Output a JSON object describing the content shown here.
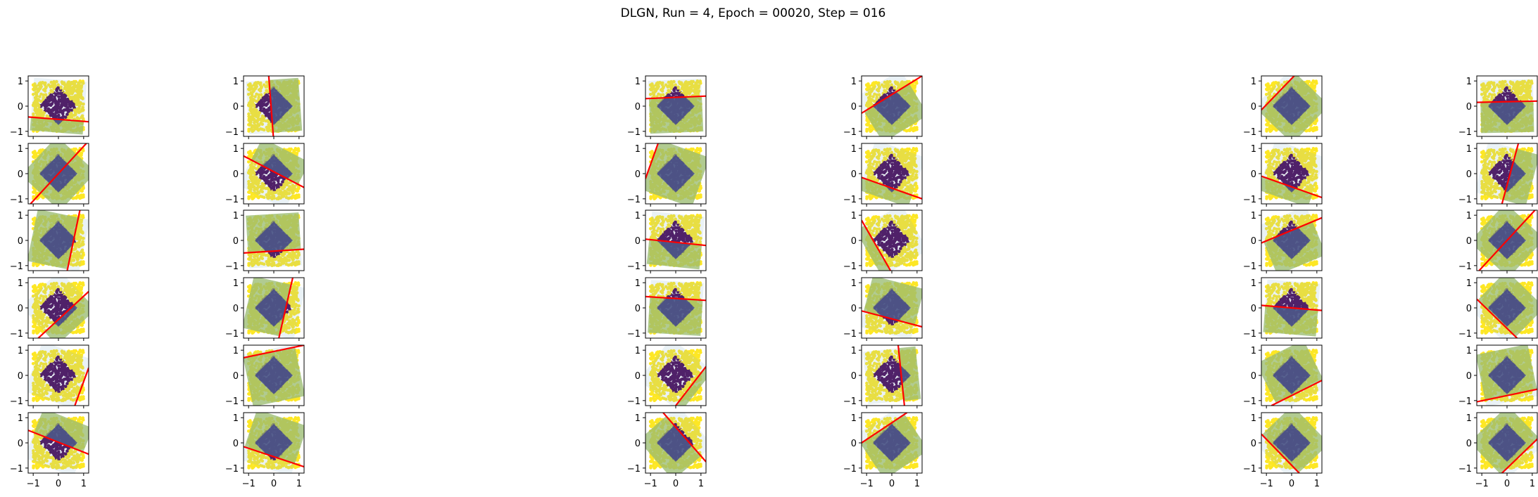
{
  "chart_data": {
    "type": "scatter",
    "title": "DLGN, Run = 4, Epoch = 00020, Step = 016",
    "grid": {
      "rows": 6,
      "cols": 6
    },
    "xlim": [
      -1.2,
      1.2
    ],
    "ylim": [
      -1.2,
      1.2
    ],
    "xticks": [
      -1,
      0,
      1
    ],
    "yticks": [
      -1,
      0,
      1
    ],
    "xtick_labels": [
      "−1",
      "0",
      "1"
    ],
    "ytick_labels": [
      "−1",
      "0",
      "1"
    ],
    "classes": [
      {
        "label": "inside diamond |x|+|y|<0.75",
        "color": "#440154"
      },
      {
        "label": "outside diamond",
        "color": "#fde725"
      }
    ],
    "colors": {
      "line": "#ff0000",
      "region_green": "#9bbb6a",
      "region_blue": "#8db5cc",
      "overlap_dark": "#3a3d8f"
    },
    "boundaries": [
      [
        {
          "p1": [
            -1.2,
            -0.43
          ],
          "p2": [
            1.2,
            -0.62
          ],
          "gate": "below"
        },
        {
          "p1": [
            -0.2,
            1.2
          ],
          "p2": [
            -0.02,
            -1.2
          ],
          "gate": "right"
        },
        {
          "p1": [
            -1.2,
            0.3
          ],
          "p2": [
            1.2,
            0.4
          ],
          "gate": "below"
        },
        {
          "p1": [
            -1.2,
            -0.28
          ],
          "p2": [
            1.2,
            1.2
          ],
          "gate": "below"
        },
        {
          "p1": [
            -1.2,
            -0.15
          ],
          "p2": [
            0.1,
            1.2
          ],
          "gate": "below"
        },
        {
          "p1": [
            -1.2,
            0.15
          ],
          "p2": [
            1.2,
            0.2
          ],
          "gate": "below"
        }
      ],
      [
        {
          "p1": [
            -1.2,
            -1.3
          ],
          "p2": [
            1.2,
            1.3
          ],
          "gate": "all"
        },
        {
          "p1": [
            -1.2,
            0.7
          ],
          "p2": [
            1.2,
            -0.55
          ],
          "gate": "above"
        },
        {
          "p1": [
            -1.2,
            -0.2
          ],
          "p2": [
            -0.7,
            1.2
          ],
          "gate": "below"
        },
        {
          "p1": [
            -1.2,
            -0.15
          ],
          "p2": [
            1.2,
            -1.0
          ],
          "gate": "below"
        },
        {
          "p1": [
            -1.2,
            -0.1
          ],
          "p2": [
            1.2,
            -0.95
          ],
          "gate": "below"
        },
        {
          "p1": [
            -0.2,
            -1.2
          ],
          "p2": [
            0.45,
            1.2
          ],
          "gate": "right"
        }
      ],
      [
        {
          "p1": [
            0.35,
            -1.2
          ],
          "p2": [
            0.85,
            1.2
          ],
          "gate": "left"
        },
        {
          "p1": [
            -1.2,
            -0.5
          ],
          "p2": [
            1.2,
            -0.35
          ],
          "gate": "above"
        },
        {
          "p1": [
            -1.2,
            0.05
          ],
          "p2": [
            1.2,
            -0.2
          ],
          "gate": "below"
        },
        {
          "p1": [
            -1.2,
            0.8
          ],
          "p2": [
            -0.05,
            -1.2
          ],
          "gate": "left"
        },
        {
          "p1": [
            -1.2,
            -0.1
          ],
          "p2": [
            1.2,
            0.9
          ],
          "gate": "below"
        },
        {
          "p1": [
            -1.2,
            -1.3
          ],
          "p2": [
            1.2,
            1.3
          ],
          "gate": "all"
        }
      ],
      [
        {
          "p1": [
            -0.8,
            -1.2
          ],
          "p2": [
            1.2,
            0.65
          ],
          "gate": "below"
        },
        {
          "p1": [
            0.2,
            -1.2
          ],
          "p2": [
            0.75,
            1.2
          ],
          "gate": "left"
        },
        {
          "p1": [
            -1.2,
            0.45
          ],
          "p2": [
            1.2,
            0.3
          ],
          "gate": "below"
        },
        {
          "p1": [
            -1.2,
            -0.12
          ],
          "p2": [
            1.2,
            -0.75
          ],
          "gate": "above"
        },
        {
          "p1": [
            -1.2,
            0.1
          ],
          "p2": [
            1.2,
            -0.1
          ],
          "gate": "below"
        },
        {
          "p1": [
            -1.2,
            0.35
          ],
          "p2": [
            0.4,
            -1.2
          ],
          "gate": "above"
        }
      ],
      [
        {
          "p1": [
            0.65,
            -1.2
          ],
          "p2": [
            1.2,
            0.3
          ],
          "gate": "right"
        },
        {
          "p1": [
            -1.2,
            0.7
          ],
          "p2": [
            1.2,
            1.2
          ],
          "gate": "below"
        },
        {
          "p1": [
            0.0,
            -1.2
          ],
          "p2": [
            1.2,
            0.35
          ],
          "gate": "below"
        },
        {
          "p1": [
            0.25,
            1.2
          ],
          "p2": [
            0.5,
            -1.2
          ],
          "gate": "right"
        },
        {
          "p1": [
            -0.8,
            -1.2
          ],
          "p2": [
            1.2,
            -0.2
          ],
          "gate": "above"
        },
        {
          "p1": [
            -1.2,
            -1.05
          ],
          "p2": [
            1.2,
            -0.55
          ],
          "gate": "above"
        }
      ],
      [
        {
          "p1": [
            -1.2,
            0.5
          ],
          "p2": [
            1.2,
            -0.45
          ],
          "gate": "above"
        },
        {
          "p1": [
            -1.2,
            -0.15
          ],
          "p2": [
            1.2,
            -0.95
          ],
          "gate": "above"
        },
        {
          "p1": [
            -0.5,
            1.2
          ],
          "p2": [
            1.2,
            -0.75
          ],
          "gate": "below"
        },
        {
          "p1": [
            -1.2,
            0.0
          ],
          "p2": [
            0.6,
            1.2
          ],
          "gate": "below"
        },
        {
          "p1": [
            -1.2,
            0.35
          ],
          "p2": [
            0.3,
            -1.2
          ],
          "gate": "above"
        },
        {
          "p1": [
            -0.2,
            -1.2
          ],
          "p2": [
            1.2,
            0.15
          ],
          "gate": "above"
        }
      ]
    ]
  }
}
